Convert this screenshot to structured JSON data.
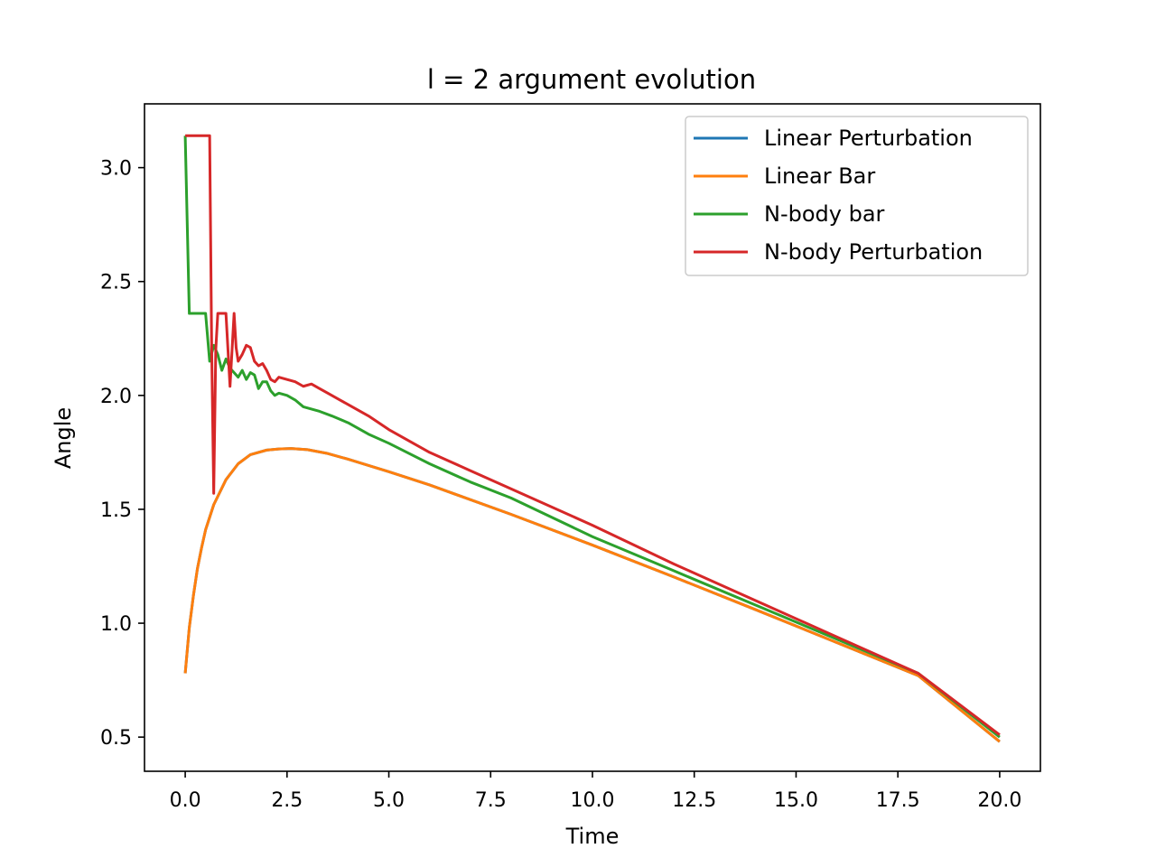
{
  "chart_data": {
    "type": "line",
    "title": "l = 2 argument evolution",
    "xlabel": "Time",
    "ylabel": "Angle",
    "xlim": [
      -1.0,
      21.0
    ],
    "ylim": [
      0.35,
      3.28
    ],
    "xticks": [
      0.0,
      2.5,
      5.0,
      7.5,
      10.0,
      12.5,
      15.0,
      17.5,
      20.0
    ],
    "xtick_labels": [
      "0.0",
      "2.5",
      "5.0",
      "7.5",
      "10.0",
      "12.5",
      "15.0",
      "17.5",
      "20.0"
    ],
    "yticks": [
      0.5,
      1.0,
      1.5,
      2.0,
      2.5,
      3.0
    ],
    "ytick_labels": [
      "0.5",
      "1.0",
      "1.5",
      "2.0",
      "2.5",
      "3.0"
    ],
    "grid": false,
    "legend_position": "top-right",
    "series": [
      {
        "name": "Linear Perturbation",
        "color": "#1f77b4",
        "x": [
          0,
          0.1,
          0.2,
          0.3,
          0.4,
          0.5,
          0.7,
          1.0,
          1.3,
          1.6,
          2.0,
          2.3,
          2.6,
          3.0,
          3.5,
          4.0,
          5.0,
          6.0,
          8.0,
          10.0,
          12.0,
          14.0,
          16.0,
          18.0,
          20.0
        ],
        "y": [
          0.78,
          0.98,
          1.12,
          1.24,
          1.33,
          1.41,
          1.52,
          1.63,
          1.7,
          1.74,
          1.76,
          1.765,
          1.767,
          1.762,
          1.745,
          1.72,
          1.665,
          1.607,
          1.478,
          1.343,
          1.203,
          1.06,
          0.915,
          0.77,
          0.48
        ]
      },
      {
        "name": "Linear Bar",
        "color": "#ff7f0e",
        "x": [
          0,
          0.1,
          0.2,
          0.3,
          0.4,
          0.5,
          0.7,
          1.0,
          1.3,
          1.6,
          2.0,
          2.3,
          2.6,
          3.0,
          3.5,
          4.0,
          5.0,
          6.0,
          8.0,
          10.0,
          12.0,
          14.0,
          16.0,
          18.0,
          20.0
        ],
        "y": [
          0.78,
          0.98,
          1.12,
          1.24,
          1.33,
          1.41,
          1.52,
          1.63,
          1.7,
          1.74,
          1.76,
          1.765,
          1.767,
          1.762,
          1.745,
          1.72,
          1.665,
          1.607,
          1.478,
          1.343,
          1.203,
          1.06,
          0.915,
          0.77,
          0.48
        ]
      },
      {
        "name": "N-body bar",
        "color": "#2ca02c",
        "x": [
          0,
          0.1,
          0.2,
          0.5,
          0.6,
          0.7,
          0.8,
          0.9,
          1.0,
          1.1,
          1.2,
          1.3,
          1.4,
          1.5,
          1.6,
          1.7,
          1.8,
          1.9,
          2.0,
          2.1,
          2.2,
          2.3,
          2.5,
          2.7,
          2.9,
          3.1,
          3.3,
          3.6,
          4.0,
          4.5,
          5.0,
          6.0,
          7.0,
          8.0,
          10.0,
          12.0,
          14.0,
          16.0,
          18.0,
          20.0
        ],
        "y": [
          3.14,
          2.36,
          2.36,
          2.36,
          2.15,
          2.22,
          2.18,
          2.11,
          2.16,
          2.12,
          2.1,
          2.08,
          2.11,
          2.07,
          2.1,
          2.09,
          2.03,
          2.06,
          2.06,
          2.02,
          2.0,
          2.01,
          2.0,
          1.98,
          1.95,
          1.94,
          1.93,
          1.91,
          1.88,
          1.83,
          1.79,
          1.7,
          1.62,
          1.55,
          1.38,
          1.23,
          1.08,
          0.93,
          0.78,
          0.5
        ]
      },
      {
        "name": "N-body Perturbation",
        "color": "#d62728",
        "x": [
          0,
          0.6,
          0.65,
          0.7,
          0.75,
          0.8,
          1.0,
          1.05,
          1.1,
          1.15,
          1.2,
          1.25,
          1.3,
          1.4,
          1.5,
          1.6,
          1.7,
          1.8,
          1.9,
          2.0,
          2.1,
          2.2,
          2.3,
          2.5,
          2.7,
          2.9,
          3.1,
          3.3,
          3.5,
          3.8,
          4.0,
          4.5,
          5.0,
          6.0,
          7.0,
          8.0,
          10.0,
          12.0,
          14.0,
          16.0,
          18.0,
          20.0
        ],
        "y": [
          3.14,
          3.14,
          2.2,
          1.57,
          2.2,
          2.36,
          2.36,
          2.2,
          2.04,
          2.2,
          2.36,
          2.21,
          2.15,
          2.18,
          2.22,
          2.21,
          2.15,
          2.13,
          2.14,
          2.11,
          2.07,
          2.06,
          2.08,
          2.07,
          2.06,
          2.04,
          2.05,
          2.03,
          2.01,
          1.98,
          1.96,
          1.91,
          1.85,
          1.75,
          1.67,
          1.59,
          1.43,
          1.26,
          1.1,
          0.94,
          0.78,
          0.51
        ]
      }
    ]
  }
}
